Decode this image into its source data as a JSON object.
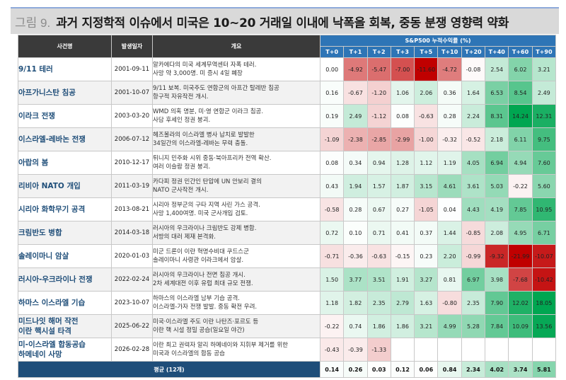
{
  "title": {
    "prefix": "그림 9.",
    "text": "과거 지정학적 이슈에서 미국은 10~20 거래일 이내에 낙폭을 회복, 중동 분쟁 영향력 약화"
  },
  "table": {
    "headers": {
      "event": "사건명",
      "date": "발생일자",
      "summary": "개요",
      "group": "S&P500 누적수익률 (%)",
      "periods": [
        "T+0",
        "T+1",
        "T+2",
        "T+3",
        "T+5",
        "T+10",
        "T+20",
        "T+40",
        "T+60",
        "T+90"
      ]
    },
    "rows": [
      {
        "event": "9/11 테러",
        "date": "2001-09-11",
        "summary1": "알카에다의 미국 세계무역센터 자폭 테러.",
        "summary2": "사망 약 3,000명. 미 증시 4일 폐장",
        "values": [
          "0.00",
          "-4.92",
          "-5.47",
          "-7.00",
          "-11.60",
          "-4.72",
          "-0.08",
          "2.54",
          "6.02",
          "3.21"
        ]
      },
      {
        "event": "아프가니스탄 침공",
        "date": "2001-10-07",
        "summary1": "9/11 보복. 미국주도 연합군의 아프간 탈레반 침공",
        "summary2": "항구적 자유작전 개시.",
        "values": [
          "0.16",
          "-0.67",
          "-1.20",
          "1.06",
          "2.06",
          "0.36",
          "1.64",
          "6.53",
          "8.54",
          "2.49"
        ]
      },
      {
        "event": "이라크 전쟁",
        "date": "2003-03-20",
        "summary1": "WMD 의혹 명분, 미·영 연합군 이라크 침공.",
        "summary2": "사담 후세인 정권 붕괴.",
        "values": [
          "0.19",
          "2.49",
          "-1.12",
          "0.08",
          "-0.63",
          "0.28",
          "2.24",
          "8.31",
          "14.24",
          "12.31"
        ]
      },
      {
        "event": "이스라엘-레바논 전쟁",
        "date": "2006-07-12",
        "summary1": "헤즈볼라의 이스라엘 병사 납치로 발발한",
        "summary2": "34일간의 이스라엘-레바논 무력 충돌.",
        "values": [
          "-1.09",
          "-2.38",
          "-2.85",
          "-2.99",
          "-1.00",
          "-0.32",
          "-0.52",
          "2.18",
          "6.11",
          "9.75"
        ]
      },
      {
        "event": "아랍의 봄",
        "date": "2010-12-17",
        "summary1": "튀니지 민주화 시위 중동·북아프리카 전역 확산.",
        "summary2": "여러 이슬람 정권 붕괴.",
        "values": [
          "0.08",
          "0.34",
          "0.94",
          "1.28",
          "1.12",
          "1.19",
          "4.05",
          "6.94",
          "4.94",
          "7.60"
        ]
      },
      {
        "event": "리비아 NATO 개입",
        "date": "2011-03-19",
        "summary1": "카다피 정권 민간인 탄압에 UN 안보리 결의",
        "summary2": "NATO 군사작전 개시.",
        "values": [
          "0.43",
          "1.94",
          "1.57",
          "1.87",
          "3.15",
          "4.61",
          "3.61",
          "5.03",
          "-0.22",
          "5.60"
        ]
      },
      {
        "event": "시리아 화학무기 공격",
        "date": "2013-08-21",
        "summary1": "시리아 정부군의 구타 지역 사린 가스 공격.",
        "summary2": "사망 1,400여명. 미국 군사개입 검토.",
        "values": [
          "-0.58",
          "0.28",
          "0.67",
          "0.27",
          "-1.05",
          "0.04",
          "4.43",
          "4.19",
          "7.85",
          "10.95"
        ]
      },
      {
        "event": "크림반도 병합",
        "date": "2014-03-18",
        "summary1": "러시아의 우크라이나 크림반도 강제 병합.",
        "summary2": "서방의 대러 제재 본격화.",
        "values": [
          "0.72",
          "0.10",
          "0.71",
          "0.41",
          "0.37",
          "1.44",
          "-0.85",
          "2.08",
          "4.95",
          "6.71"
        ]
      },
      {
        "event": "솔레이마니 암살",
        "date": "2020-01-03",
        "summary1": "미군 드론이 이란 혁명수비대 쿠드스군",
        "summary2": "솔레이마니 사령관 이라크에서 암살.",
        "values": [
          "-0.71",
          "-0.36",
          "-0.63",
          "-0.15",
          "0.23",
          "2.20",
          "-0.99",
          "-9.32",
          "-21.99",
          "-10.07"
        ]
      },
      {
        "event": "러시아-우크라이나 전쟁",
        "date": "2022-02-24",
        "summary1": "러시아의 우크라이나 전면 침공 개시.",
        "summary2": "2차 세계대전 이후 유럽 최대 규모 전쟁.",
        "values": [
          "1.50",
          "3.77",
          "3.51",
          "1.91",
          "3.27",
          "0.81",
          "6.97",
          "3.98",
          "-7.68",
          "-10.42"
        ]
      },
      {
        "event": "하마스 이스라엘 기습",
        "date": "2023-10-07",
        "summary1": "하마스의 이스라엘 남부 기습 공격.",
        "summary2": "이스라엘-가자 전쟁 발발. 중동 확전 우려.",
        "values": [
          "1.18",
          "1.82",
          "2.35",
          "2.79",
          "1.63",
          "-0.80",
          "2.35",
          "7.90",
          "12.02",
          "18.05"
        ]
      },
      {
        "event": "미드나잇 해머 작전\n이란 핵시설 타격",
        "event1": "미드나잇 해머 작전",
        "event2": "이란 핵시설 타격",
        "date": "2025-06-22",
        "summary1": "미국·이스라엘 주도 이란 나탄즈·포르도 등",
        "summary2": "이란 핵 시설 정밀 공습(일요일 야간)",
        "values": [
          "-0.22",
          "0.74",
          "1.86",
          "1.86",
          "3.21",
          "4.99",
          "5.28",
          "7.84",
          "10.09",
          "13.56"
        ]
      },
      {
        "event1": "미-이스라엘 합동공습",
        "event2": "하메네이 사망",
        "date": "2026-02-28",
        "summary1": "이란 최고 권력자 알리 하메네이와 지휘부 제거를 위한",
        "summary2": "미국과 이스라엘의 합동 공습",
        "values": [
          "-0.43",
          "-0.39",
          "-1.33",
          "",
          "",
          "",
          "",
          "",
          "",
          ""
        ]
      }
    ],
    "average": {
      "label": "평균 (12개)",
      "values": [
        "0.14",
        "0.26",
        "0.03",
        "0.12",
        "0.06",
        "0.84",
        "2.34",
        "4.02",
        "3.74",
        "5.81"
      ]
    }
  },
  "colors": {
    "header_dark": "#3a3a3a",
    "header_blue": "#2e75b6",
    "avg_bar": "#1f4e79",
    "event_text": "#1f4e79",
    "neg_max": "#c00000",
    "pos_max": "#00a651",
    "neutral": "#ffffff"
  },
  "chart_data": {
    "type": "heatmap",
    "title": "과거 지정학적 이슈에서 미국은 10~20 거래일 이내에 낙폭을 회복, 중동 분쟁 영향력 약화",
    "subtitle": "S&P500 누적수익률 (%)",
    "x": [
      "T+0",
      "T+1",
      "T+2",
      "T+3",
      "T+5",
      "T+10",
      "T+20",
      "T+40",
      "T+60",
      "T+90"
    ],
    "y": [
      "9/11 테러",
      "아프가니스탄 침공",
      "이라크 전쟁",
      "이스라엘-레바논 전쟁",
      "아랍의 봄",
      "리비아 NATO 개입",
      "시리아 화학무기 공격",
      "크림반도 병합",
      "솔레이마니 암살",
      "러시아-우크라이나 전쟁",
      "하마스 이스라엘 기습",
      "미드나잇 해머 작전 이란 핵시설 타격",
      "미-이스라엘 합동공습 하메네이 사망",
      "평균 (12개)"
    ],
    "values": [
      [
        0.0,
        -4.92,
        -5.47,
        -7.0,
        -11.6,
        -4.72,
        -0.08,
        2.54,
        6.02,
        3.21
      ],
      [
        0.16,
        -0.67,
        -1.2,
        1.06,
        2.06,
        0.36,
        1.64,
        6.53,
        8.54,
        2.49
      ],
      [
        0.19,
        2.49,
        -1.12,
        0.08,
        -0.63,
        0.28,
        2.24,
        8.31,
        14.24,
        12.31
      ],
      [
        -1.09,
        -2.38,
        -2.85,
        -2.99,
        -1.0,
        -0.32,
        -0.52,
        2.18,
        6.11,
        9.75
      ],
      [
        0.08,
        0.34,
        0.94,
        1.28,
        1.12,
        1.19,
        4.05,
        6.94,
        4.94,
        7.6
      ],
      [
        0.43,
        1.94,
        1.57,
        1.87,
        3.15,
        4.61,
        3.61,
        5.03,
        -0.22,
        5.6
      ],
      [
        -0.58,
        0.28,
        0.67,
        0.27,
        -1.05,
        0.04,
        4.43,
        4.19,
        7.85,
        10.95
      ],
      [
        0.72,
        0.1,
        0.71,
        0.41,
        0.37,
        1.44,
        -0.85,
        2.08,
        4.95,
        6.71
      ],
      [
        -0.71,
        -0.36,
        -0.63,
        -0.15,
        0.23,
        2.2,
        -0.99,
        -9.32,
        -21.99,
        -10.07
      ],
      [
        1.5,
        3.77,
        3.51,
        1.91,
        3.27,
        0.81,
        6.97,
        3.98,
        -7.68,
        -10.42
      ],
      [
        1.18,
        1.82,
        2.35,
        2.79,
        1.63,
        -0.8,
        2.35,
        7.9,
        12.02,
        18.05
      ],
      [
        -0.22,
        0.74,
        1.86,
        1.86,
        3.21,
        4.99,
        5.28,
        7.84,
        10.09,
        13.56
      ],
      [
        -0.43,
        -0.39,
        -1.33,
        null,
        null,
        null,
        null,
        null,
        null,
        null
      ],
      [
        0.14,
        0.26,
        0.03,
        0.12,
        0.06,
        0.84,
        2.34,
        4.02,
        3.74,
        5.81
      ]
    ],
    "colorscale": "red-white-green diverging"
  }
}
